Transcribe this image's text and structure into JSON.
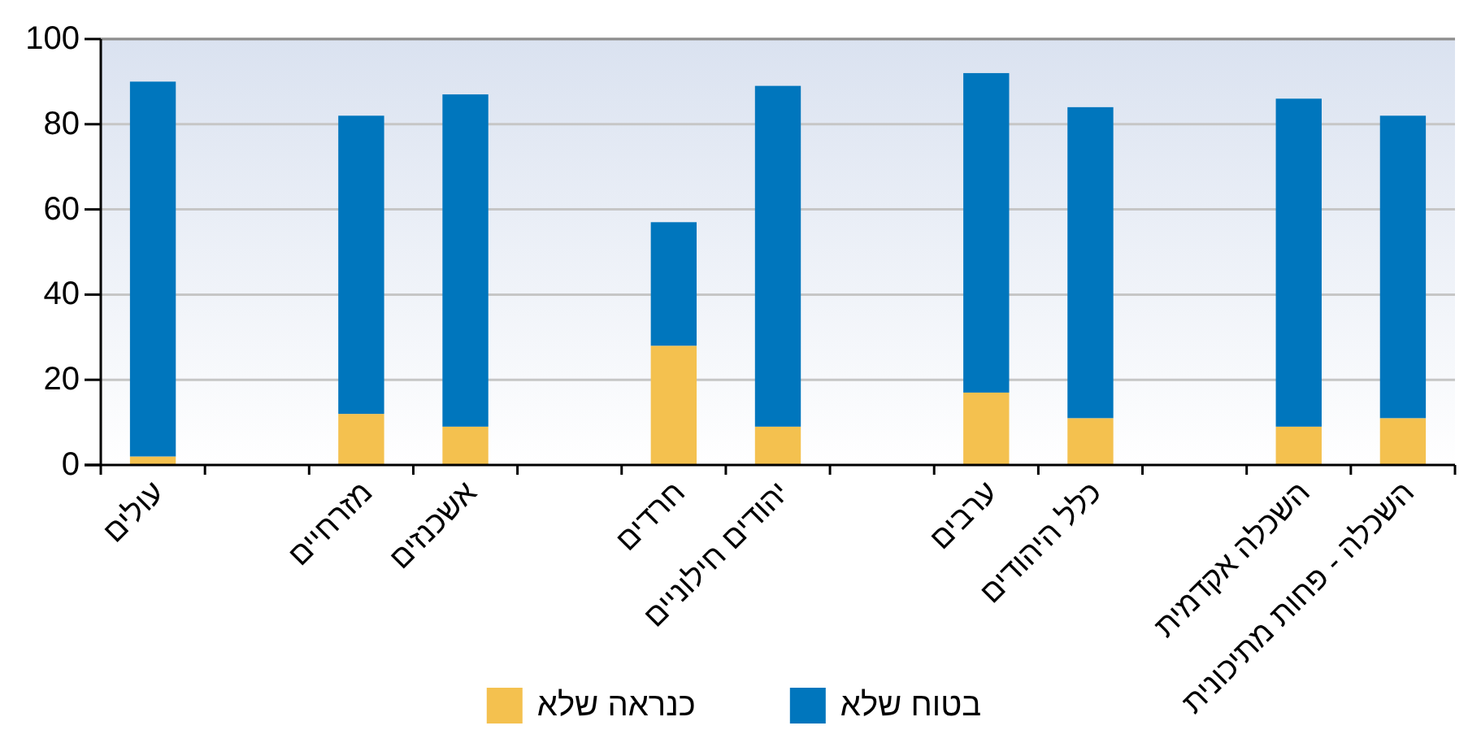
{
  "chart_data": {
    "type": "bar",
    "stacked": true,
    "categories": [
      "עולים",
      null,
      "מזרחיים",
      "אשכנזים",
      null,
      "חרדים",
      "יהודים חילוניים",
      null,
      "ערבים",
      "כלל היהודים",
      null,
      "השכלה אקדמית",
      "השכלה - פחות מתיכונית"
    ],
    "series": [
      {
        "name": "כנראה שלא",
        "color": "#f4c14f",
        "values": [
          2,
          null,
          12,
          9,
          null,
          28,
          9,
          null,
          17,
          11,
          null,
          9,
          11
        ]
      },
      {
        "name": "בטוח שלא",
        "color": "#0076bd",
        "values": [
          88,
          null,
          70,
          78,
          null,
          29,
          80,
          null,
          75,
          73,
          null,
          77,
          71
        ]
      }
    ],
    "ylim": [
      0,
      100
    ],
    "yticks": [
      0,
      20,
      40,
      60,
      80,
      100
    ],
    "grid": "y",
    "legend": "bottom"
  }
}
